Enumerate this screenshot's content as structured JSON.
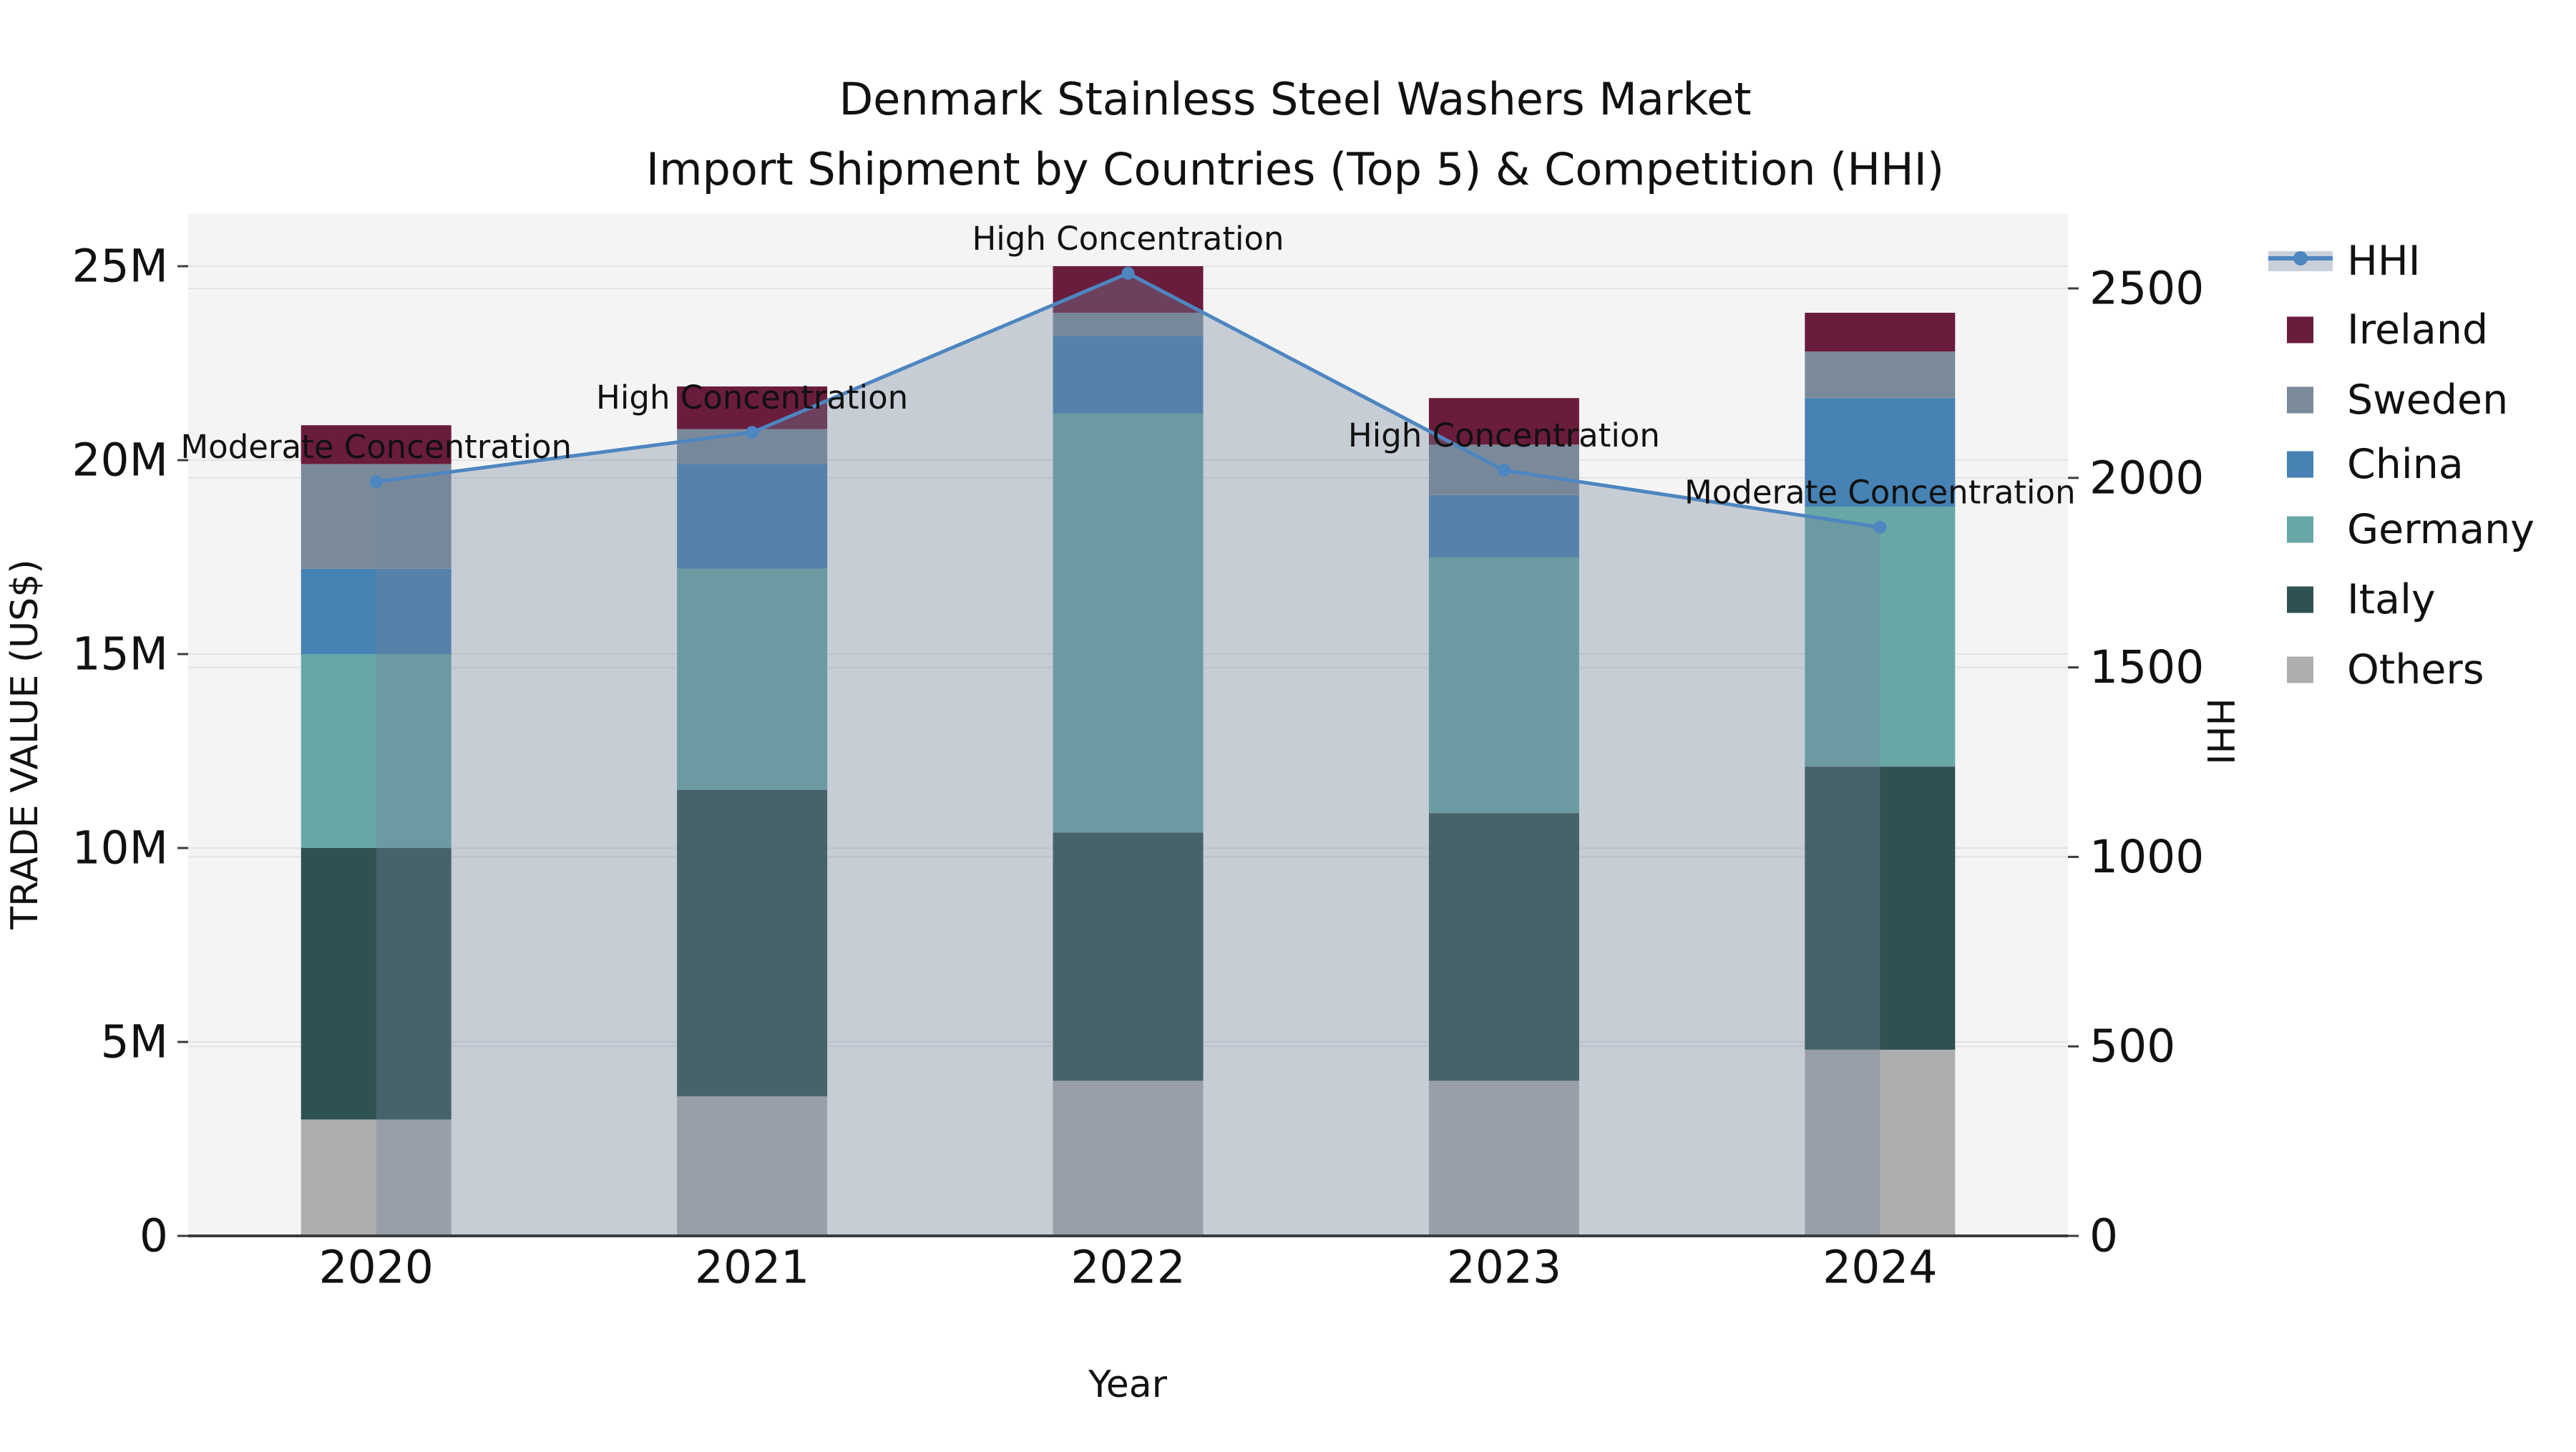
{
  "title": {
    "line1": "Denmark Stainless Steel Washers Market",
    "line2": "Import Shipment by Countries (Top 5) & Competition (HHI)"
  },
  "axes": {
    "x": {
      "label": "Year",
      "tick_labels": [
        "2020",
        "2021",
        "2022",
        "2023",
        "2024"
      ]
    },
    "y_left": {
      "label": "TRADE VALUE (US$)",
      "tick_labels": [
        "0",
        "5M",
        "10M",
        "15M",
        "20M",
        "25M"
      ],
      "tick_values": [
        0,
        5,
        10,
        15,
        20,
        25
      ],
      "range": [
        0,
        26.4
      ],
      "unit": "million US$"
    },
    "y_right": {
      "label": "HHI",
      "tick_labels": [
        "0",
        "500",
        "1000",
        "1500",
        "2000",
        "2500"
      ],
      "tick_values": [
        0,
        500,
        1000,
        1500,
        2000,
        2500
      ],
      "range": [
        0,
        2700
      ]
    }
  },
  "legend": {
    "position": "right",
    "entries": [
      {
        "label": "HHI",
        "type": "line",
        "color": "#4D86C0"
      },
      {
        "label": "Ireland",
        "type": "square",
        "color": "#6A1C3C"
      },
      {
        "label": "Sweden",
        "type": "square",
        "color": "#7B8A9B"
      },
      {
        "label": "China",
        "type": "square",
        "color": "#4682B4"
      },
      {
        "label": "Germany",
        "type": "square",
        "color": "#69A7A7"
      },
      {
        "label": "Italy",
        "type": "square",
        "color": "#2F5151"
      },
      {
        "label": "Others",
        "type": "square",
        "color": "#AEAEAF"
      }
    ]
  },
  "chart_data": {
    "type": "bar+line",
    "categories": [
      "2020",
      "2021",
      "2022",
      "2023",
      "2024"
    ],
    "bar_unit": "million US$",
    "stack_order_bottom_to_top": [
      "Others",
      "Italy",
      "Germany",
      "China",
      "Sweden",
      "Ireland"
    ],
    "series": [
      {
        "name": "Ireland",
        "color": "#6A1C3C",
        "values": [
          1.0,
          1.1,
          1.2,
          1.2,
          1.0
        ]
      },
      {
        "name": "Sweden",
        "color": "#7B8A9B",
        "values": [
          2.7,
          0.9,
          0.6,
          1.3,
          1.2
        ]
      },
      {
        "name": "China",
        "color": "#4682B4",
        "values": [
          2.2,
          2.7,
          2.0,
          1.6,
          2.8
        ]
      },
      {
        "name": "Germany",
        "color": "#69A7A7",
        "values": [
          5.0,
          5.7,
          10.8,
          6.6,
          6.7
        ]
      },
      {
        "name": "Italy",
        "color": "#2F5151",
        "values": [
          7.0,
          7.9,
          6.4,
          6.9,
          7.3
        ]
      },
      {
        "name": "Others",
        "color": "#AEAEAF",
        "values": [
          3.0,
          3.6,
          4.0,
          4.0,
          4.8
        ]
      }
    ],
    "bar_totals": [
      20.9,
      21.9,
      25.0,
      21.6,
      23.8
    ],
    "line_series": {
      "name": "HHI",
      "color": "#4D86C0",
      "area_fill": "rgba(114,131,156,0.35)",
      "values": [
        1990,
        2120,
        2540,
        2020,
        1870
      ]
    },
    "annotations": [
      {
        "x": "2020",
        "text": "Moderate Concentration"
      },
      {
        "x": "2021",
        "text": "High Concentration"
      },
      {
        "x": "2022",
        "text": "High Concentration"
      },
      {
        "x": "2023",
        "text": "High Concentration"
      },
      {
        "x": "2024",
        "text": "Moderate Concentration"
      }
    ],
    "grid": "horizontal gridlines for both y axes",
    "plot_background": "#F4F4F5"
  }
}
